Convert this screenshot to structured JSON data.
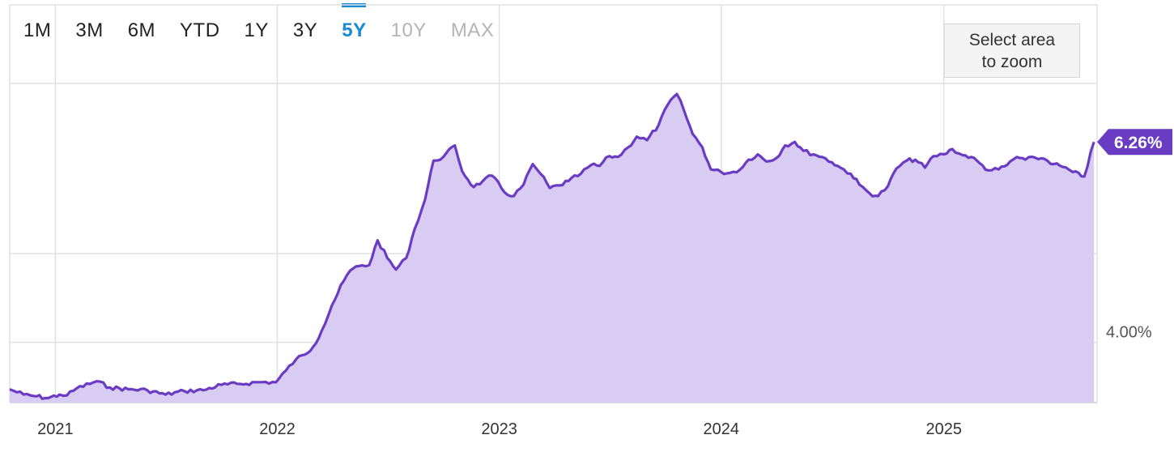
{
  "range_selector": {
    "buttons": [
      {
        "label": "1M",
        "state": "normal"
      },
      {
        "label": "3M",
        "state": "normal"
      },
      {
        "label": "6M",
        "state": "normal"
      },
      {
        "label": "YTD",
        "state": "normal"
      },
      {
        "label": "1Y",
        "state": "normal"
      },
      {
        "label": "3Y",
        "state": "normal"
      },
      {
        "label": "5Y",
        "state": "active"
      },
      {
        "label": "10Y",
        "state": "disabled"
      },
      {
        "label": "MAX",
        "state": "disabled"
      }
    ]
  },
  "zoom_button": {
    "label": "Select area\nto zoom"
  },
  "colors": {
    "line": "#6a3cc4",
    "fill": "#d9ccf3",
    "active": "#1a8ad4",
    "grid": "#e1e1e1"
  },
  "chart_data": {
    "type": "area",
    "title": "",
    "xlabel": "",
    "ylabel": "",
    "x_tick_labels": [
      "2021",
      "2022",
      "2023",
      "2024",
      "2025"
    ],
    "y_tick_labels": [
      {
        "value": 4.0,
        "label": "4.00%"
      }
    ],
    "last_value": {
      "value": 6.26,
      "label": "6.26%"
    },
    "ylim": [
      3.32,
      6.92
    ],
    "xlim": [
      "2020-10-18",
      "2025-09-10"
    ],
    "grid": true,
    "series": [
      {
        "values": [
          [
            "2020-10-18",
            3.47
          ],
          [
            "2020-11-10",
            3.41
          ],
          [
            "2020-12-01",
            3.39
          ],
          [
            "2020-12-20",
            3.37
          ],
          [
            "2021-01-08",
            3.41
          ],
          [
            "2021-01-20",
            3.4
          ],
          [
            "2021-02-05",
            3.48
          ],
          [
            "2021-03-10",
            3.56
          ],
          [
            "2021-04-01",
            3.49
          ],
          [
            "2021-05-01",
            3.47
          ],
          [
            "2021-06-01",
            3.46
          ],
          [
            "2021-07-01",
            3.41
          ],
          [
            "2021-08-01",
            3.45
          ],
          [
            "2021-09-01",
            3.46
          ],
          [
            "2021-10-01",
            3.52
          ],
          [
            "2021-11-01",
            3.53
          ],
          [
            "2021-12-01",
            3.55
          ],
          [
            "2021-12-30",
            3.55
          ],
          [
            "2022-01-15",
            3.68
          ],
          [
            "2022-02-01",
            3.81
          ],
          [
            "2022-02-15",
            3.86
          ],
          [
            "2022-03-01",
            3.95
          ],
          [
            "2022-03-15",
            4.13
          ],
          [
            "2022-04-01",
            4.42
          ],
          [
            "2022-04-20",
            4.69
          ],
          [
            "2022-05-01",
            4.81
          ],
          [
            "2022-05-15",
            4.86
          ],
          [
            "2022-06-01",
            4.87
          ],
          [
            "2022-06-15",
            5.15
          ],
          [
            "2022-07-01",
            4.95
          ],
          [
            "2022-07-15",
            4.82
          ],
          [
            "2022-08-01",
            4.95
          ],
          [
            "2022-08-15",
            5.28
          ],
          [
            "2022-09-01",
            5.61
          ],
          [
            "2022-09-15",
            6.05
          ],
          [
            "2022-10-01",
            6.09
          ],
          [
            "2022-10-20",
            6.22
          ],
          [
            "2022-11-01",
            5.93
          ],
          [
            "2022-11-20",
            5.75
          ],
          [
            "2022-12-05",
            5.82
          ],
          [
            "2022-12-20",
            5.88
          ],
          [
            "2023-01-10",
            5.69
          ],
          [
            "2023-01-25",
            5.65
          ],
          [
            "2023-02-10",
            5.78
          ],
          [
            "2023-02-25",
            6.01
          ],
          [
            "2023-03-10",
            5.9
          ],
          [
            "2023-03-25",
            5.74
          ],
          [
            "2023-04-10",
            5.77
          ],
          [
            "2023-04-25",
            5.82
          ],
          [
            "2023-05-15",
            5.9
          ],
          [
            "2023-06-01",
            6.0
          ],
          [
            "2023-06-15",
            5.99
          ],
          [
            "2023-07-01",
            6.1
          ],
          [
            "2023-07-15",
            6.09
          ],
          [
            "2023-08-01",
            6.2
          ],
          [
            "2023-08-15",
            6.32
          ],
          [
            "2023-09-01",
            6.28
          ],
          [
            "2023-09-20",
            6.45
          ],
          [
            "2023-10-05",
            6.68
          ],
          [
            "2023-10-20",
            6.8
          ],
          [
            "2023-11-01",
            6.61
          ],
          [
            "2023-11-15",
            6.35
          ],
          [
            "2023-12-01",
            6.2
          ],
          [
            "2023-12-15",
            5.95
          ],
          [
            "2024-01-01",
            5.92
          ],
          [
            "2024-01-15",
            5.91
          ],
          [
            "2024-02-01",
            5.95
          ],
          [
            "2024-02-15",
            6.06
          ],
          [
            "2024-03-01",
            6.12
          ],
          [
            "2024-03-15",
            6.04
          ],
          [
            "2024-04-01",
            6.08
          ],
          [
            "2024-04-15",
            6.22
          ],
          [
            "2024-05-01",
            6.26
          ],
          [
            "2024-05-15",
            6.16
          ],
          [
            "2024-06-01",
            6.12
          ],
          [
            "2024-06-15",
            6.09
          ],
          [
            "2024-07-01",
            6.03
          ],
          [
            "2024-07-15",
            5.97
          ],
          [
            "2024-08-01",
            5.9
          ],
          [
            "2024-08-15",
            5.78
          ],
          [
            "2024-09-01",
            5.68
          ],
          [
            "2024-09-15",
            5.65
          ],
          [
            "2024-10-01",
            5.76
          ],
          [
            "2024-10-15",
            5.96
          ],
          [
            "2024-11-01",
            6.05
          ],
          [
            "2024-11-15",
            6.06
          ],
          [
            "2024-12-01",
            5.97
          ],
          [
            "2024-12-15",
            6.1
          ],
          [
            "2025-01-01",
            6.12
          ],
          [
            "2025-01-15",
            6.18
          ],
          [
            "2025-02-01",
            6.11
          ],
          [
            "2025-02-15",
            6.09
          ],
          [
            "2025-03-01",
            6.02
          ],
          [
            "2025-03-15",
            5.94
          ],
          [
            "2025-04-01",
            5.95
          ],
          [
            "2025-04-15",
            6.0
          ],
          [
            "2025-05-01",
            6.09
          ],
          [
            "2025-05-15",
            6.06
          ],
          [
            "2025-06-01",
            6.08
          ],
          [
            "2025-06-15",
            6.07
          ],
          [
            "2025-07-01",
            6.01
          ],
          [
            "2025-07-15",
            5.98
          ],
          [
            "2025-08-01",
            5.92
          ],
          [
            "2025-08-20",
            5.87
          ],
          [
            "2025-09-05",
            6.26
          ]
        ]
      }
    ]
  }
}
